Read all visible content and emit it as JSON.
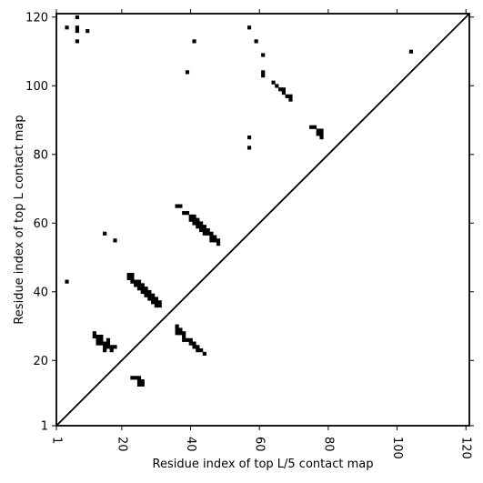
{
  "chart_data": {
    "type": "scatter",
    "xlabel": "Residue index of top L/5 contact map",
    "ylabel": "Residue index of top L contact map",
    "xlim": [
      1,
      121
    ],
    "ylim": [
      1,
      121
    ],
    "x_ticks": [
      1,
      20,
      40,
      60,
      80,
      100,
      120
    ],
    "y_ticks": [
      1,
      20,
      40,
      60,
      80,
      100,
      120
    ],
    "grid": false,
    "diagonal_line": true,
    "marker": "square",
    "color": "#000000",
    "series": [
      {
        "points": [
          [
            4,
            117
          ],
          [
            7,
            120
          ],
          [
            7,
            117
          ],
          [
            7,
            116
          ],
          [
            7,
            113
          ],
          [
            10,
            116
          ],
          [
            41,
            113
          ],
          [
            57,
            117
          ],
          [
            59,
            113
          ],
          [
            61,
            109
          ],
          [
            39,
            104
          ],
          [
            61,
            104
          ],
          [
            61,
            103
          ],
          [
            104,
            110
          ],
          [
            64,
            101
          ],
          [
            65,
            100
          ],
          [
            66,
            99
          ],
          [
            67,
            99
          ],
          [
            67,
            98
          ],
          [
            68,
            97
          ],
          [
            69,
            97
          ],
          [
            69,
            96
          ],
          [
            75,
            88
          ],
          [
            76,
            88
          ],
          [
            77,
            87
          ],
          [
            77,
            86
          ],
          [
            78,
            87
          ],
          [
            78,
            86
          ],
          [
            78,
            85
          ],
          [
            57,
            85
          ],
          [
            57,
            82
          ],
          [
            36,
            65
          ],
          [
            37,
            65
          ],
          [
            38,
            63
          ],
          [
            39,
            63
          ],
          [
            40,
            62
          ],
          [
            40,
            61
          ],
          [
            41,
            62
          ],
          [
            41,
            61
          ],
          [
            41,
            60
          ],
          [
            42,
            61
          ],
          [
            42,
            60
          ],
          [
            42,
            59
          ],
          [
            43,
            60
          ],
          [
            43,
            59
          ],
          [
            43,
            58
          ],
          [
            44,
            59
          ],
          [
            44,
            58
          ],
          [
            44,
            57
          ],
          [
            45,
            58
          ],
          [
            45,
            57
          ],
          [
            46,
            57
          ],
          [
            46,
            56
          ],
          [
            46,
            55
          ],
          [
            47,
            56
          ],
          [
            47,
            55
          ],
          [
            48,
            55
          ],
          [
            48,
            54
          ],
          [
            15,
            57
          ],
          [
            18,
            55
          ],
          [
            4,
            43
          ],
          [
            22,
            45
          ],
          [
            22,
            44
          ],
          [
            23,
            45
          ],
          [
            23,
            44
          ],
          [
            23,
            43
          ],
          [
            24,
            43
          ],
          [
            24,
            42
          ],
          [
            25,
            43
          ],
          [
            25,
            42
          ],
          [
            25,
            41
          ],
          [
            26,
            42
          ],
          [
            26,
            41
          ],
          [
            26,
            40
          ],
          [
            27,
            41
          ],
          [
            27,
            40
          ],
          [
            27,
            39
          ],
          [
            28,
            40
          ],
          [
            28,
            39
          ],
          [
            28,
            38
          ],
          [
            29,
            39
          ],
          [
            29,
            38
          ],
          [
            29,
            37
          ],
          [
            30,
            38
          ],
          [
            30,
            37
          ],
          [
            30,
            36
          ],
          [
            31,
            37
          ],
          [
            31,
            36
          ],
          [
            12,
            28
          ],
          [
            12,
            27
          ],
          [
            13,
            27
          ],
          [
            13,
            26
          ],
          [
            13,
            25
          ],
          [
            14,
            27
          ],
          [
            14,
            26
          ],
          [
            14,
            25
          ],
          [
            15,
            25
          ],
          [
            15,
            24
          ],
          [
            15,
            23
          ],
          [
            16,
            26
          ],
          [
            16,
            25
          ],
          [
            16,
            24
          ],
          [
            17,
            24
          ],
          [
            17,
            23
          ],
          [
            18,
            24
          ],
          [
            36,
            30
          ],
          [
            36,
            29
          ],
          [
            36,
            28
          ],
          [
            37,
            29
          ],
          [
            37,
            28
          ],
          [
            38,
            28
          ],
          [
            38,
            27
          ],
          [
            38,
            26
          ],
          [
            39,
            26
          ],
          [
            40,
            26
          ],
          [
            40,
            25
          ],
          [
            41,
            25
          ],
          [
            41,
            24
          ],
          [
            42,
            24
          ],
          [
            42,
            23
          ],
          [
            43,
            23
          ],
          [
            44,
            22
          ],
          [
            23,
            15
          ],
          [
            24,
            15
          ],
          [
            25,
            15
          ],
          [
            25,
            14
          ],
          [
            25,
            13
          ],
          [
            26,
            14
          ],
          [
            26,
            13
          ]
        ]
      }
    ]
  }
}
